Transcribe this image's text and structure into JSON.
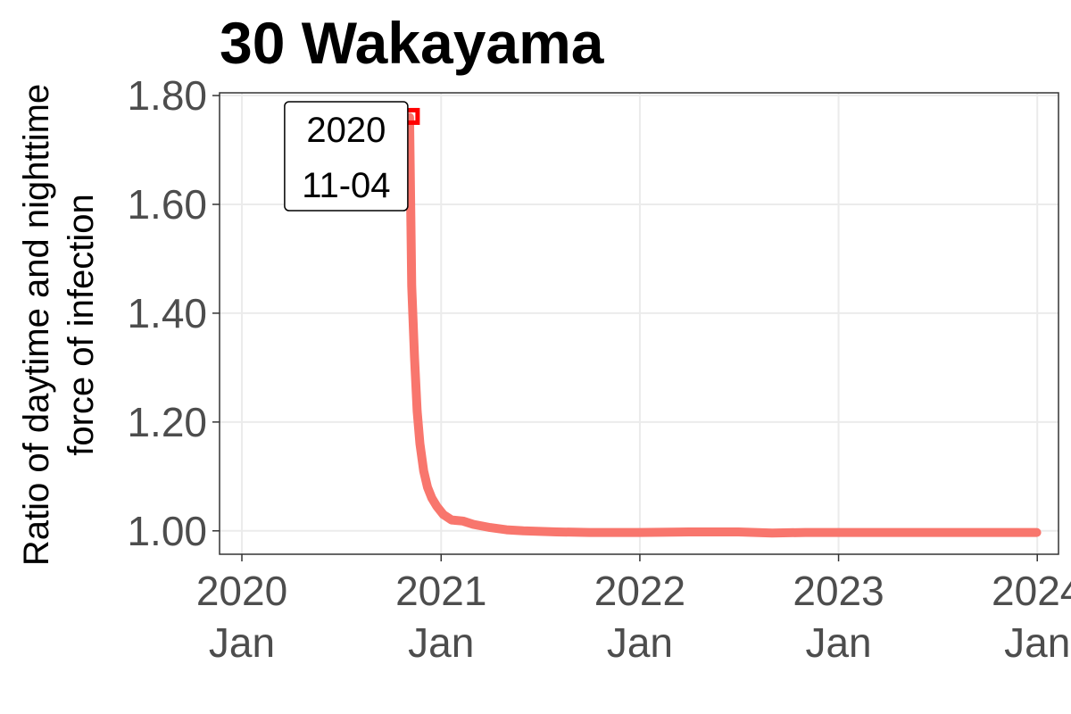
{
  "chart_data": {
    "type": "line",
    "title": "30 Wakayama",
    "ylabel_lines": [
      "Ratio of daytime and nighttime",
      "force of infection"
    ],
    "xlabel": "",
    "ylim": [
      0.957,
      1.805
    ],
    "xlim": [
      "2019-11-21",
      "2024-02-09"
    ],
    "y_ticks": [
      {
        "value": 1.0,
        "label": "1.00"
      },
      {
        "value": 1.2,
        "label": "1.20"
      },
      {
        "value": 1.4,
        "label": "1.40"
      },
      {
        "value": 1.6,
        "label": "1.60"
      },
      {
        "value": 1.8,
        "label": "1.80"
      }
    ],
    "x_ticks": [
      {
        "date": "2020-01-01",
        "year": "2020",
        "month": "Jan"
      },
      {
        "date": "2021-01-01",
        "year": "2021",
        "month": "Jan"
      },
      {
        "date": "2022-01-01",
        "year": "2022",
        "month": "Jan"
      },
      {
        "date": "2023-01-01",
        "year": "2023",
        "month": "Jan"
      },
      {
        "date": "2024-01-01",
        "year": "2024",
        "month": "Jan"
      }
    ],
    "grid": true,
    "legend": "none",
    "series": [
      {
        "color": "#f8766d",
        "points": [
          [
            "2020-11-04",
            1.76
          ],
          [
            "2020-11-08",
            1.45
          ],
          [
            "2020-11-13",
            1.32
          ],
          [
            "2020-11-18",
            1.22
          ],
          [
            "2020-11-23",
            1.16
          ],
          [
            "2020-11-30",
            1.11
          ],
          [
            "2020-12-07",
            1.08
          ],
          [
            "2020-12-15",
            1.06
          ],
          [
            "2020-12-24",
            1.045
          ],
          [
            "2021-01-05",
            1.03
          ],
          [
            "2021-01-20",
            1.02
          ],
          [
            "2021-02-10",
            1.018
          ],
          [
            "2021-03-01",
            1.012
          ],
          [
            "2021-04-01",
            1.006
          ],
          [
            "2021-05-01",
            1.002
          ],
          [
            "2021-06-01",
            1.0
          ],
          [
            "2021-08-01",
            0.998
          ],
          [
            "2021-10-01",
            0.997
          ],
          [
            "2022-01-01",
            0.997
          ],
          [
            "2022-04-01",
            0.998
          ],
          [
            "2022-07-01",
            0.998
          ],
          [
            "2022-09-01",
            0.996
          ],
          [
            "2022-11-01",
            0.997
          ],
          [
            "2023-01-01",
            0.997
          ],
          [
            "2023-06-01",
            0.997
          ],
          [
            "2023-12-31",
            0.997
          ]
        ]
      }
    ],
    "highlight": {
      "date": "2020-11-04",
      "value": 1.76,
      "color": "#ff0000"
    },
    "annotation": {
      "lines": [
        "2020",
        "11-04"
      ]
    }
  }
}
